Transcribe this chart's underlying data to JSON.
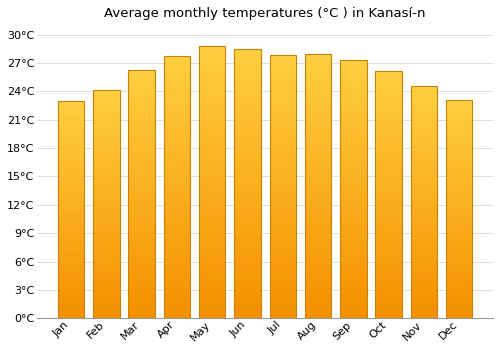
{
  "title": "Average monthly temperatures (°C ) in Kanasí-n",
  "months": [
    "Jan",
    "Feb",
    "Mar",
    "Apr",
    "May",
    "Jun",
    "Jul",
    "Aug",
    "Sep",
    "Oct",
    "Nov",
    "Dec"
  ],
  "values": [
    23.0,
    24.1,
    26.3,
    27.8,
    28.8,
    28.5,
    27.9,
    28.0,
    27.3,
    26.2,
    24.6,
    23.1
  ],
  "bar_color": "#FFA500",
  "bar_gradient_top": "#FFD040",
  "bar_gradient_bottom": "#F59000",
  "bar_edge_color": "#C8820A",
  "background_color": "#FFFFFF",
  "plot_bg_color": "#FFFFFF",
  "grid_color": "#DDDDDD",
  "ylim": [
    0,
    31
  ],
  "yticks": [
    0,
    3,
    6,
    9,
    12,
    15,
    18,
    21,
    24,
    27,
    30
  ],
  "ytick_labels": [
    "0°C",
    "3°C",
    "6°C",
    "9°C",
    "12°C",
    "15°C",
    "18°C",
    "21°C",
    "24°C",
    "27°C",
    "30°C"
  ],
  "title_fontsize": 9.5,
  "tick_fontsize": 8,
  "bar_width": 0.75
}
